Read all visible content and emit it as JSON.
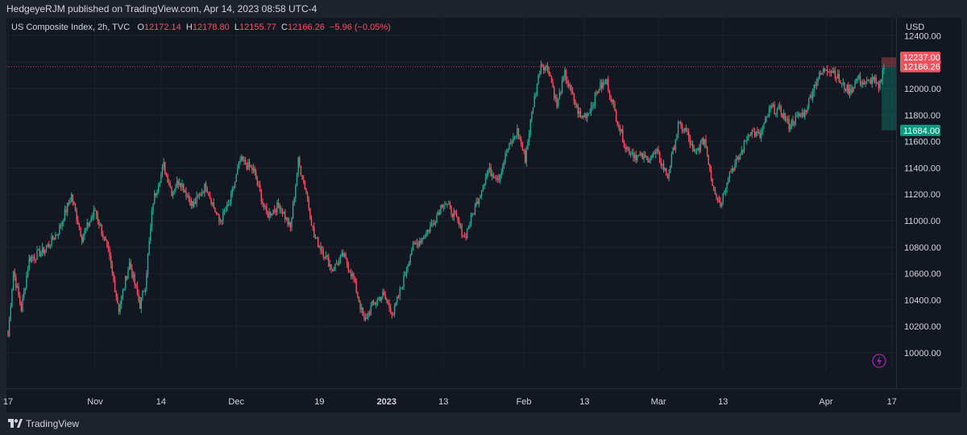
{
  "header": {
    "publisher": "HedgeyeRJM published on TradingView.com, Apr 14, 2023 08:58 UTC-4"
  },
  "legend": {
    "symbol": "US Composite Index, 2h, TVC",
    "o_label": "O",
    "o_value": "12172.14",
    "h_label": "H",
    "h_value": "12178.80",
    "l_label": "L",
    "l_value": "12155.77",
    "c_label": "C",
    "c_value": "12166.26",
    "change": "−5.96 (−0.05%)"
  },
  "colors": {
    "up": "#22ab94",
    "down": "#f7525f",
    "background": "#131722",
    "grid": "#1e222d",
    "text": "#d1d4dc"
  },
  "price_scale": {
    "currency": "USD",
    "badges": [
      {
        "label": "12237.00",
        "value": 12237,
        "color": "#f7525f"
      },
      {
        "label": "12166.26",
        "value": 12166.26,
        "color": "#f7525f"
      },
      {
        "label": "11684.00",
        "value": 11684,
        "color": "#089981"
      }
    ]
  },
  "footer": {
    "brand": "TradingView"
  },
  "chart_data": {
    "type": "candlestick",
    "title": "US Composite Index, 2h, TVC",
    "ylim": [
      9900,
      12450
    ],
    "y_ticks": [
      {
        "label": "12400.00",
        "value": 12400
      },
      {
        "label": "12200.00",
        "value": 12200
      },
      {
        "label": "12000.00",
        "value": 12000
      },
      {
        "label": "11800.00",
        "value": 11800
      },
      {
        "label": "11600.00",
        "value": 11600
      },
      {
        "label": "11400.00",
        "value": 11400
      },
      {
        "label": "11200.00",
        "value": 11200
      },
      {
        "label": "11000.00",
        "value": 11000
      },
      {
        "label": "10800.00",
        "value": 10800
      },
      {
        "label": "10600.00",
        "value": 10600
      },
      {
        "label": "10400.00",
        "value": 10400
      },
      {
        "label": "10200.00",
        "value": 10200
      },
      {
        "label": "10000.00",
        "value": 10000
      }
    ],
    "x_ticks": [
      {
        "label": "17",
        "bar": 0,
        "bold": false
      },
      {
        "label": "Nov",
        "bar": 66,
        "bold": false
      },
      {
        "label": "14",
        "bar": 116,
        "bold": false
      },
      {
        "label": "Dec",
        "bar": 173,
        "bold": false
      },
      {
        "label": "19",
        "bar": 236,
        "bold": false
      },
      {
        "label": "2023",
        "bar": 287,
        "bold": true
      },
      {
        "label": "13",
        "bar": 330,
        "bold": false
      },
      {
        "label": "Feb",
        "bar": 391,
        "bold": false
      },
      {
        "label": "13",
        "bar": 437,
        "bold": false
      },
      {
        "label": "Mar",
        "bar": 493,
        "bold": false
      },
      {
        "label": "13",
        "bar": 542,
        "bold": false
      },
      {
        "label": "Apr",
        "bar": 620,
        "bold": false
      },
      {
        "label": "17",
        "bar": 670,
        "bold": false
      }
    ],
    "anchor_closes": [
      [
        0,
        10130
      ],
      [
        4,
        10620
      ],
      [
        10,
        10330
      ],
      [
        16,
        10710
      ],
      [
        28,
        10780
      ],
      [
        38,
        10920
      ],
      [
        48,
        11190
      ],
      [
        56,
        10870
      ],
      [
        66,
        11080
      ],
      [
        76,
        10760
      ],
      [
        84,
        10330
      ],
      [
        92,
        10680
      ],
      [
        100,
        10360
      ],
      [
        104,
        10520
      ],
      [
        110,
        11150
      ],
      [
        118,
        11420
      ],
      [
        124,
        11220
      ],
      [
        130,
        11310
      ],
      [
        140,
        11110
      ],
      [
        150,
        11270
      ],
      [
        160,
        10990
      ],
      [
        168,
        11130
      ],
      [
        176,
        11460
      ],
      [
        186,
        11380
      ],
      [
        196,
        11040
      ],
      [
        206,
        11120
      ],
      [
        214,
        10940
      ],
      [
        220,
        11450
      ],
      [
        226,
        11220
      ],
      [
        232,
        10880
      ],
      [
        238,
        10780
      ],
      [
        246,
        10630
      ],
      [
        254,
        10740
      ],
      [
        262,
        10560
      ],
      [
        270,
        10230
      ],
      [
        276,
        10360
      ],
      [
        284,
        10440
      ],
      [
        292,
        10300
      ],
      [
        300,
        10560
      ],
      [
        306,
        10790
      ],
      [
        314,
        10870
      ],
      [
        322,
        10980
      ],
      [
        330,
        11150
      ],
      [
        338,
        11050
      ],
      [
        346,
        10870
      ],
      [
        356,
        11160
      ],
      [
        364,
        11380
      ],
      [
        372,
        11330
      ],
      [
        378,
        11520
      ],
      [
        386,
        11680
      ],
      [
        392,
        11470
      ],
      [
        398,
        11880
      ],
      [
        404,
        12190
      ],
      [
        410,
        12140
      ],
      [
        416,
        11870
      ],
      [
        422,
        12110
      ],
      [
        428,
        11940
      ],
      [
        434,
        11780
      ],
      [
        440,
        11820
      ],
      [
        448,
        12010
      ],
      [
        454,
        12050
      ],
      [
        460,
        11820
      ],
      [
        468,
        11560
      ],
      [
        476,
        11490
      ],
      [
        484,
        11470
      ],
      [
        492,
        11510
      ],
      [
        500,
        11330
      ],
      [
        508,
        11720
      ],
      [
        514,
        11680
      ],
      [
        520,
        11500
      ],
      [
        528,
        11620
      ],
      [
        534,
        11280
      ],
      [
        540,
        11120
      ],
      [
        546,
        11350
      ],
      [
        554,
        11470
      ],
      [
        562,
        11680
      ],
      [
        570,
        11640
      ],
      [
        578,
        11850
      ],
      [
        586,
        11830
      ],
      [
        592,
        11720
      ],
      [
        598,
        11780
      ],
      [
        604,
        11820
      ],
      [
        612,
        12050
      ],
      [
        620,
        12160
      ],
      [
        626,
        12130
      ],
      [
        632,
        12030
      ],
      [
        638,
        11980
      ],
      [
        644,
        12080
      ],
      [
        650,
        12030
      ],
      [
        656,
        12080
      ],
      [
        660,
        11990
      ],
      [
        664,
        12166
      ]
    ]
  }
}
